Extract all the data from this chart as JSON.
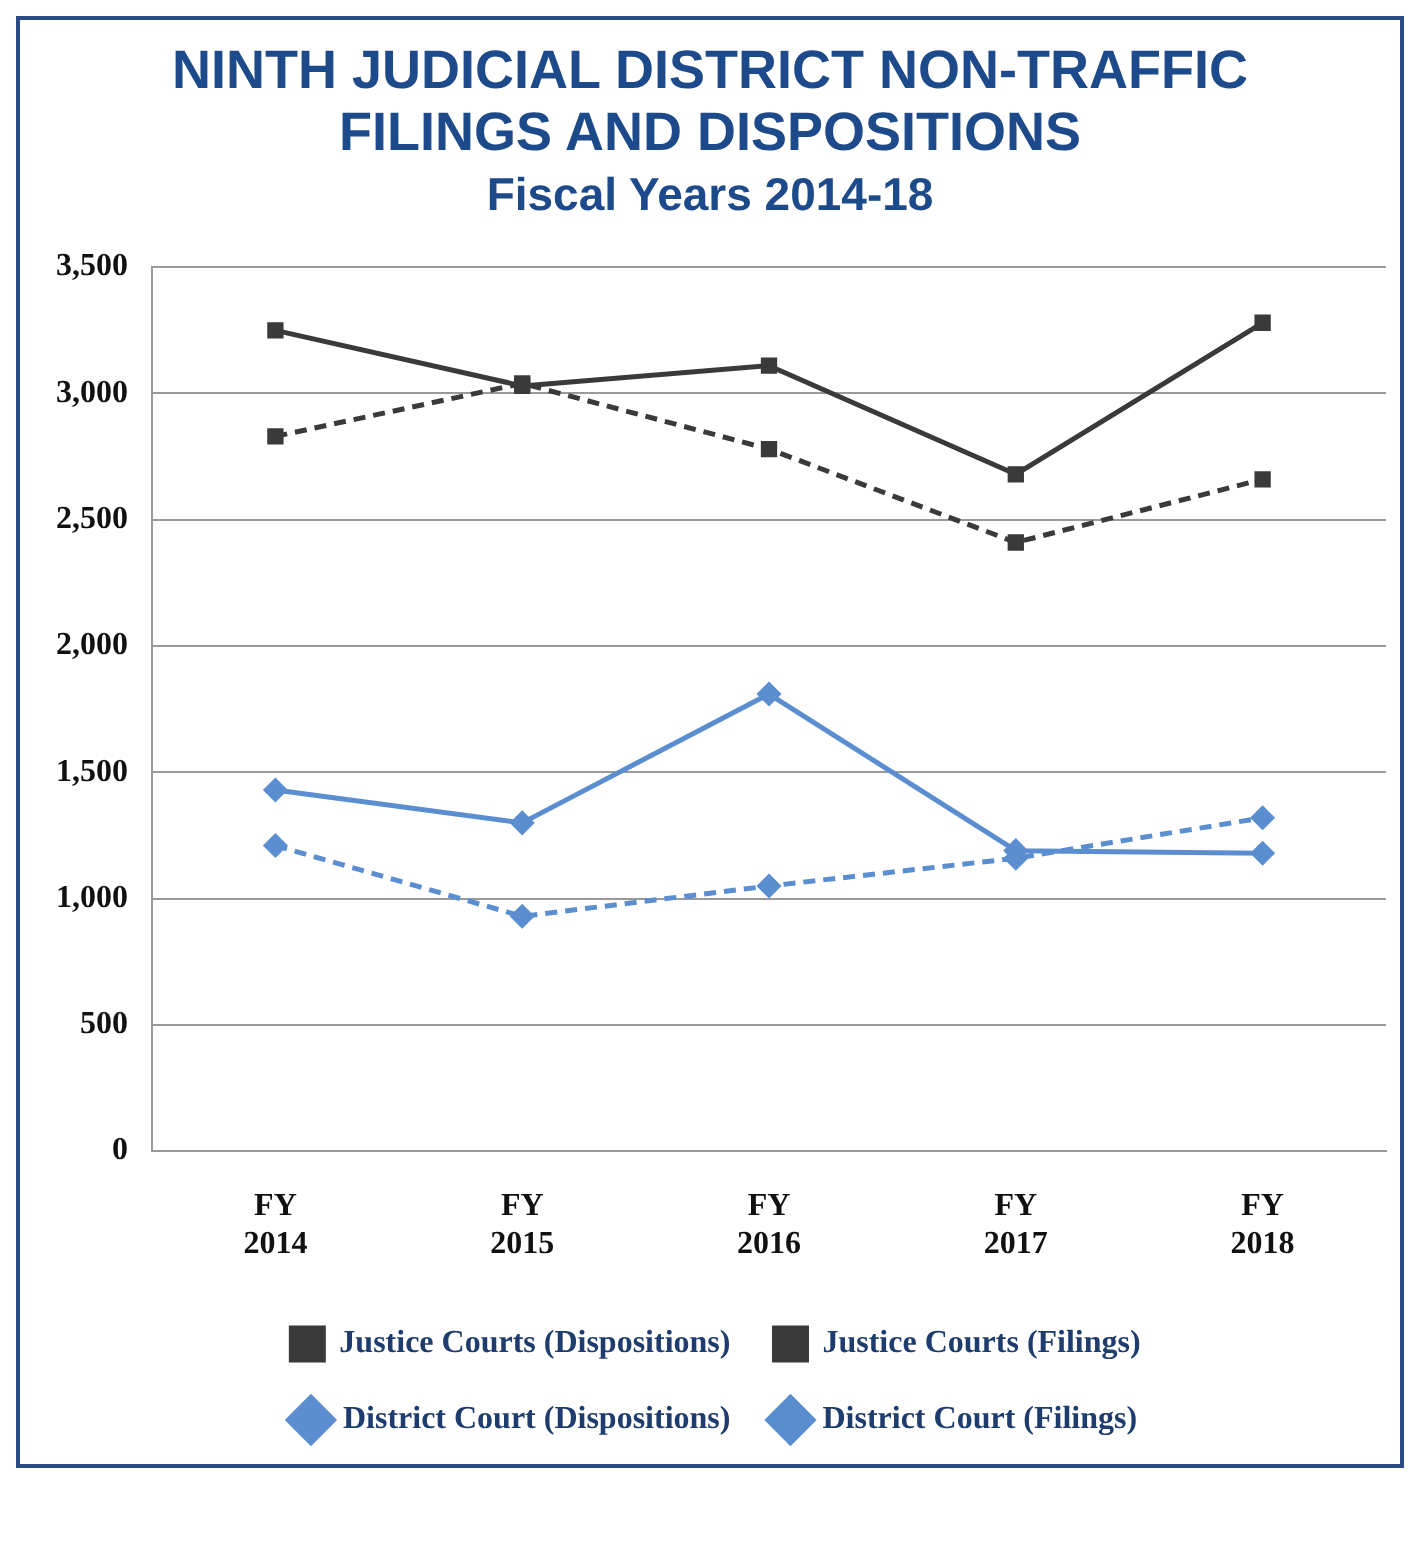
{
  "chart_data": {
    "type": "line",
    "title": "NINTH JUDICIAL DISTRICT NON-TRAFFIC FILINGS AND DISPOSITIONS",
    "subtitle": "Fiscal Years 2014-18",
    "categories": [
      "FY 2014",
      "FY 2015",
      "FY 2016",
      "FY 2017",
      "FY 2018"
    ],
    "ylim": [
      0,
      3500
    ],
    "yticks": [
      0,
      500,
      {
        "value": 1000,
        "label": "1,000"
      },
      {
        "value": 1500,
        "label": "1,500"
      },
      {
        "value": 2000,
        "label": "2,000"
      },
      {
        "value": 2500,
        "label": "2,500"
      },
      {
        "value": 3000,
        "label": "3,000"
      },
      {
        "value": 3500,
        "label": "3,500"
      }
    ],
    "grid": "y",
    "legend": "bottom",
    "series": [
      {
        "name": "District Court (Filings)",
        "color": "#5a8ed0",
        "marker": "diamond",
        "line_style": "solid",
        "values": [
          1430,
          1300,
          1810,
          1190,
          1180
        ]
      },
      {
        "name": "District Court (Dispositions)",
        "color": "#5a8ed0",
        "marker": "diamond",
        "line_style": "dashed",
        "values": [
          1210,
          930,
          1050,
          1160,
          1320
        ]
      },
      {
        "name": "Justice Courts (Filings)",
        "color": "#3a3a3a",
        "marker": "square",
        "line_style": "solid",
        "values": [
          3250,
          3030,
          3110,
          2680,
          3280
        ]
      },
      {
        "name": "Justice Courts (Dispositions)",
        "color": "#3a3a3a",
        "marker": "square",
        "line_style": "dashed",
        "values": [
          2830,
          3040,
          2780,
          2410,
          2660
        ]
      }
    ]
  }
}
